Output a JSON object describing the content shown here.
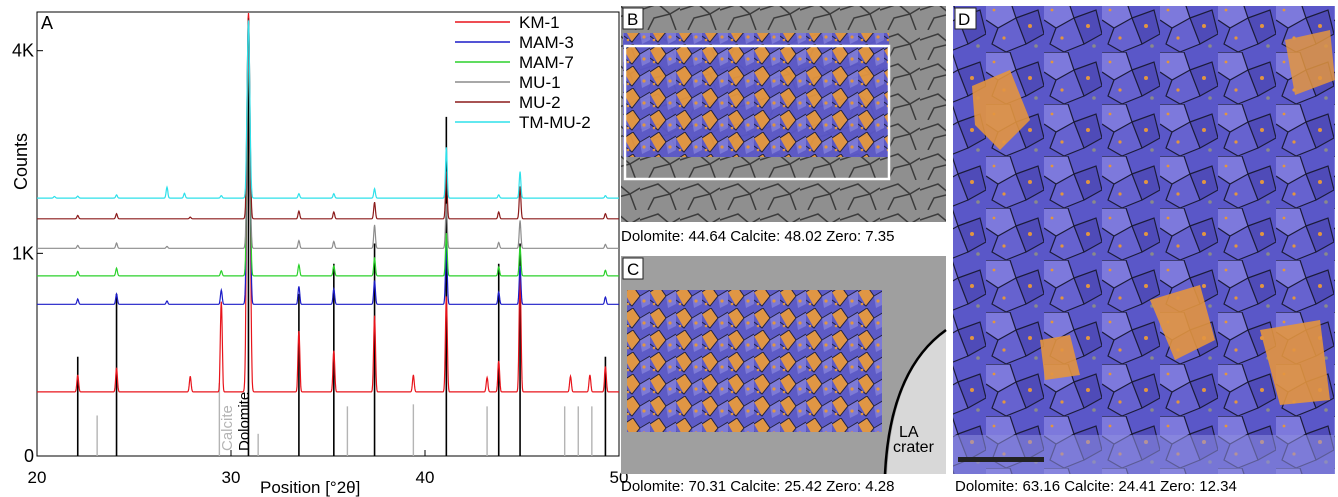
{
  "chart_data": {
    "type": "line",
    "panel_label": "A",
    "xlabel": "Position [°2θ]",
    "ylabel": "Counts",
    "xlim": [
      20,
      50
    ],
    "x_ticks": [
      20,
      30,
      40,
      50
    ],
    "y_ticks": [
      {
        "value": 0,
        "label": "0"
      },
      {
        "value": 1000,
        "label": "1K"
      },
      {
        "value": 4000,
        "label": "4K"
      }
    ],
    "y_scale": "sqrt",
    "ylim": [
      0,
      4800
    ],
    "legend_position": "top-right",
    "series": [
      {
        "name": "KM-1",
        "color": "#e8141b",
        "offset": 100,
        "peaks": [
          [
            22.1,
            60
          ],
          [
            24.1,
            90
          ],
          [
            27.9,
            55
          ],
          [
            29.5,
            480
          ],
          [
            30.9,
            4800
          ],
          [
            33.5,
            280
          ],
          [
            35.3,
            170
          ],
          [
            37.4,
            380
          ],
          [
            39.4,
            60
          ],
          [
            41.1,
            520
          ],
          [
            43.2,
            50
          ],
          [
            43.8,
            120
          ],
          [
            44.9,
            700
          ],
          [
            47.5,
            55
          ],
          [
            48.5,
            60
          ],
          [
            49.3,
            95
          ]
        ]
      },
      {
        "name": "MAM-3",
        "color": "#1c1cc7",
        "offset": 560,
        "peaks": [
          [
            22.1,
            40
          ],
          [
            24.1,
            80
          ],
          [
            26.7,
            25
          ],
          [
            29.5,
            110
          ],
          [
            30.9,
            4000
          ],
          [
            33.5,
            140
          ],
          [
            35.3,
            120
          ],
          [
            37.4,
            190
          ],
          [
            41.1,
            520
          ],
          [
            43.8,
            95
          ],
          [
            44.9,
            320
          ],
          [
            49.3,
            55
          ]
        ]
      },
      {
        "name": "MAM-7",
        "color": "#2bd12b",
        "offset": 790,
        "peaks": [
          [
            22.1,
            40
          ],
          [
            24.1,
            70
          ],
          [
            29.5,
            45
          ],
          [
            30.9,
            3500
          ],
          [
            33.5,
            100
          ],
          [
            35.3,
            90
          ],
          [
            37.4,
            170
          ],
          [
            41.1,
            420
          ],
          [
            43.8,
            80
          ],
          [
            44.9,
            280
          ],
          [
            49.3,
            50
          ]
        ]
      },
      {
        "name": "MU-1",
        "color": "#8c8c8c",
        "offset": 1050,
        "peaks": [
          [
            22.1,
            30
          ],
          [
            24.1,
            55
          ],
          [
            26.7,
            20
          ],
          [
            30.9,
            3000
          ],
          [
            33.5,
            80
          ],
          [
            35.3,
            70
          ],
          [
            37.4,
            250
          ],
          [
            41.1,
            500
          ],
          [
            43.8,
            60
          ],
          [
            44.9,
            300
          ],
          [
            49.3,
            40
          ]
        ]
      },
      {
        "name": "MU-2",
        "color": "#8b1a1a",
        "offset": 1370,
        "peaks": [
          [
            22.1,
            40
          ],
          [
            24.1,
            60
          ],
          [
            27.9,
            20
          ],
          [
            30.9,
            3300
          ],
          [
            33.5,
            90
          ],
          [
            35.3,
            80
          ],
          [
            37.4,
            200
          ],
          [
            41.1,
            600
          ],
          [
            43.8,
            80
          ],
          [
            44.9,
            400
          ],
          [
            49.3,
            60
          ]
        ]
      },
      {
        "name": "TM-MU-2",
        "color": "#2ee0ea",
        "offset": 1620,
        "peaks": [
          [
            20.9,
            20
          ],
          [
            22.1,
            25
          ],
          [
            24.1,
            40
          ],
          [
            26.7,
            140
          ],
          [
            27.6,
            60
          ],
          [
            29.5,
            30
          ],
          [
            30.9,
            3000
          ],
          [
            33.5,
            55
          ],
          [
            35.3,
            55
          ],
          [
            37.4,
            120
          ],
          [
            41.1,
            700
          ],
          [
            43.8,
            40
          ],
          [
            44.9,
            350
          ],
          [
            49.3,
            30
          ]
        ]
      }
    ],
    "reference_lines": {
      "dolomite": {
        "label": "Dolomite",
        "color": "#000000",
        "lines": [
          [
            22.1,
            240
          ],
          [
            24.1,
            640
          ],
          [
            30.9,
            3800
          ],
          [
            33.5,
            640
          ],
          [
            35.3,
            900
          ],
          [
            37.4,
            1100
          ],
          [
            41.1,
            2800
          ],
          [
            43.8,
            900
          ],
          [
            44.9,
            1100
          ],
          [
            49.3,
            240
          ]
        ]
      },
      "calcite": {
        "label": "Calcite",
        "color": "#b4b4b4",
        "lines": [
          [
            23.1,
            40
          ],
          [
            29.4,
            130
          ],
          [
            31.4,
            12
          ],
          [
            36.0,
            60
          ],
          [
            39.4,
            65
          ],
          [
            43.2,
            60
          ],
          [
            47.2,
            60
          ],
          [
            47.9,
            60
          ],
          [
            48.6,
            60
          ]
        ]
      }
    }
  },
  "panels": {
    "B": {
      "label": "B",
      "caption": "Dolomite: 44.64 Calcite: 48.02 Zero: 7.35"
    },
    "C": {
      "label": "C",
      "caption": "Dolomite: 70.31 Calcite: 25.42 Zero: 4.28",
      "annotation_line1": "LA",
      "annotation_line2": "crater"
    },
    "D": {
      "label": "D",
      "caption": "Dolomite: 63.16 Calcite: 24.41 Zero: 12.34"
    }
  },
  "colors": {
    "dolomite_phase": "#5a57c8",
    "calcite_phase": "#e3953f",
    "sem_grey": "#8a8a8a"
  }
}
